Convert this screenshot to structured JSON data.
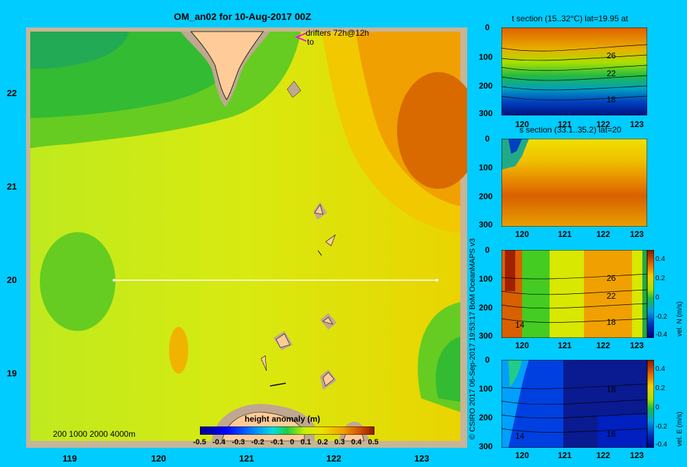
{
  "map": {
    "title": "OM_an02 for 10-Aug-2017 00Z",
    "drifters_label": "drifters 72h@12h",
    "drifters_to": "to",
    "lat_ticks": [
      "22",
      "21",
      "20",
      "19"
    ],
    "lon_ticks": [
      "119",
      "120",
      "121",
      "122",
      "123"
    ],
    "depth_legend": "200  1000  2000  4000m",
    "colorbar": {
      "title": "height anomaly  (m)",
      "ticks": [
        "-0.5",
        "-0.4",
        "-0.3",
        "-0.2",
        "-0.1",
        "0",
        "0.1",
        "0.2",
        "0.3",
        "0.4",
        "0.5"
      ]
    },
    "section_line": {
      "lat": 20,
      "lon_start": 119.5,
      "lon_end": 123.2
    }
  },
  "credit": "© CSIRO 2017   06-Sep-2017 19:53:17 BoM OceanMAPS v3",
  "panels": [
    {
      "title": "t section (15..32°C) lat=19.95 at",
      "depth_ticks": [
        "0",
        "100",
        "200",
        "300"
      ],
      "lon_ticks": [
        "120",
        "121",
        "122",
        "123"
      ],
      "contour_labels": [
        "26",
        "22",
        "18"
      ]
    },
    {
      "title": "s section (33.1..35.2) lat=20",
      "depth_ticks": [
        "0",
        "100",
        "200",
        "300"
      ],
      "lon_ticks": [
        "120",
        "121",
        "122",
        "123"
      ]
    },
    {
      "depth_ticks": [
        "0",
        "100",
        "200",
        "300"
      ],
      "lon_ticks": [
        "120",
        "121",
        "122",
        "123"
      ],
      "contour_labels": [
        "26",
        "22",
        "18",
        "14"
      ],
      "colorbar_ticks": [
        "0.4",
        "0.2",
        "0",
        "-0.2",
        "-0.4"
      ],
      "colorbar_label": "vel. N  (m/s)"
    },
    {
      "depth_ticks": [
        "0",
        "100",
        "200",
        "300"
      ],
      "lon_ticks": [
        "120",
        "121",
        "122",
        "123"
      ],
      "contour_labels": [
        "18",
        "16",
        "14"
      ],
      "colorbar_ticks": [
        "0.4",
        "0.2",
        "0",
        "-0.2",
        "-0.4"
      ],
      "colorbar_label": "vel. E  (m/s)"
    }
  ]
}
